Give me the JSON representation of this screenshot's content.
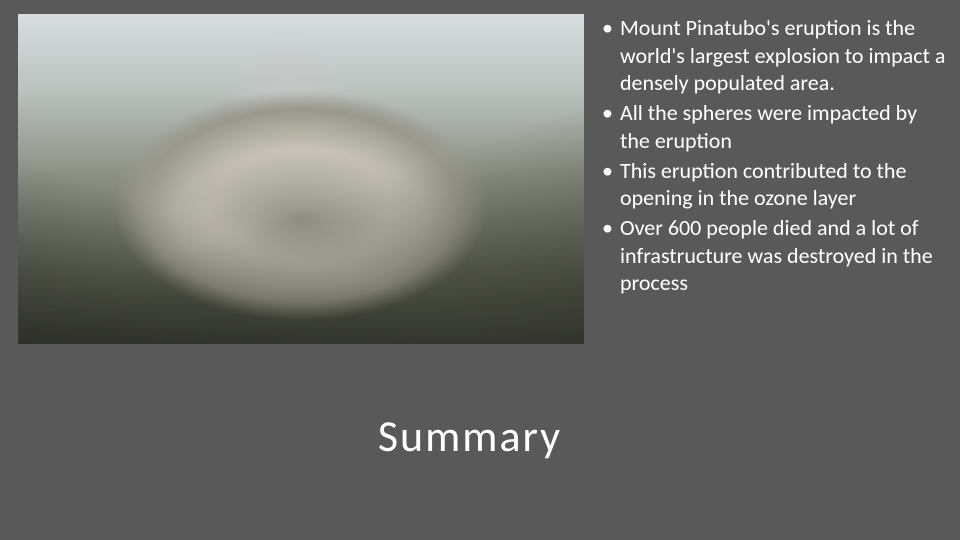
{
  "slide": {
    "title": "Summary",
    "bullets": [
      "Mount Pinatubo's eruption is the world's largest explosion to impact a densely populated area.",
      "All the spheres were impacted by the eruption",
      "This eruption contributed to the opening in the ozone layer",
      "Over 600 people died and a lot of infrastructure was destroyed in the process"
    ],
    "title_fontsize": 44,
    "body_fontsize": 22,
    "background_color": "#595959",
    "text_color": "#ffffff",
    "image_alt": "Aerial photo of Mount Pinatubo crater with ash and steam"
  }
}
